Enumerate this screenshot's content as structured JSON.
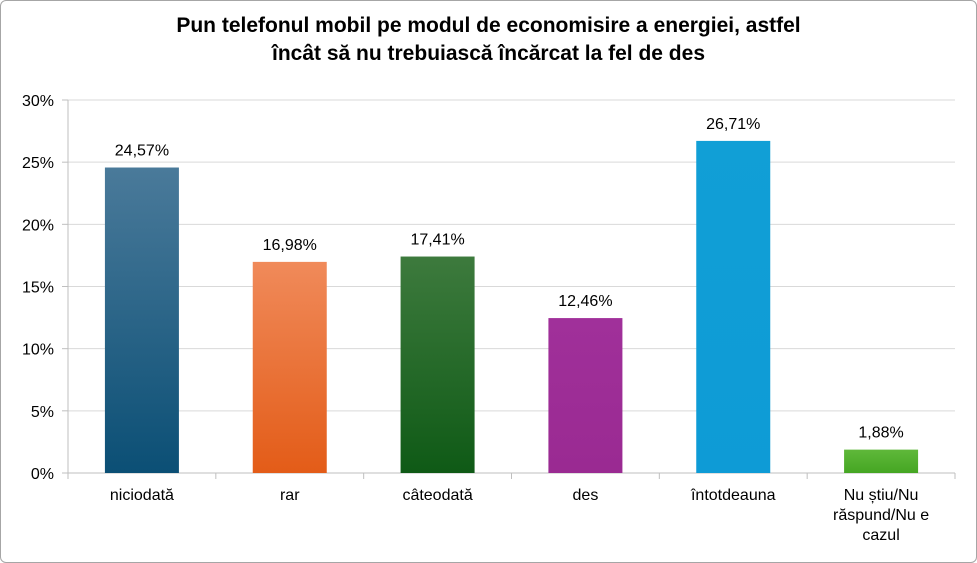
{
  "chart_data": {
    "type": "bar",
    "title_lines": [
      "Pun telefonul mobil pe modul de economisire a energiei, astfel",
      "încât să nu trebuiască încărcat la fel de des"
    ],
    "categories": [
      [
        "niciodată"
      ],
      [
        "rar"
      ],
      [
        "câteodată"
      ],
      [
        "des"
      ],
      [
        "întotdeauna"
      ],
      [
        "Nu știu/Nu",
        "răspund/Nu e",
        "cazul"
      ]
    ],
    "values": [
      24.57,
      16.98,
      17.41,
      12.46,
      26.71,
      1.88
    ],
    "value_labels": [
      "24,57%",
      "16,98%",
      "17,41%",
      "12,46%",
      "26,71%",
      "1,88%"
    ],
    "yticks": [
      "0%",
      "5%",
      "10%",
      "15%",
      "20%",
      "25%",
      "30%"
    ],
    "ylim": [
      0,
      30
    ],
    "grid": true,
    "colors": [
      [
        "#4a7a9a",
        "#0b4f75"
      ],
      [
        "#f08a5a",
        "#e35c18"
      ],
      [
        "#3d7a3d",
        "#0f5a16"
      ],
      [
        "#a0309a",
        "#9a2a92"
      ],
      [
        "#119fd6",
        "#0e9bd6"
      ],
      [
        "#5fb83a",
        "#45a623"
      ]
    ]
  }
}
